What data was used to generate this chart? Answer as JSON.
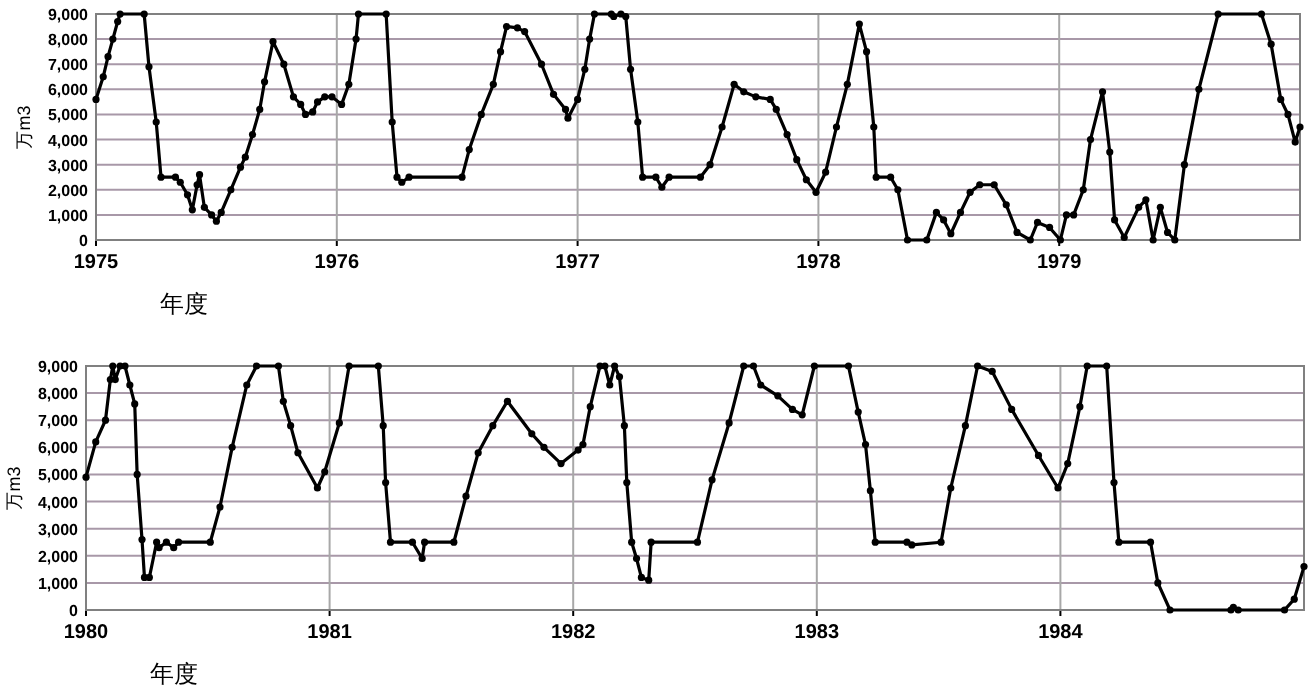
{
  "chart_data": [
    {
      "type": "line",
      "xlabel": "年度",
      "ylabel": "万m3",
      "grid": true,
      "marker": "circle",
      "line_style": "solid",
      "xlim": [
        1975,
        1980
      ],
      "ylim": [
        0,
        9000
      ],
      "xticks": [
        1975,
        1976,
        1977,
        1978,
        1979
      ],
      "yticks": [
        {
          "value": 0,
          "label": "0"
        },
        {
          "value": 1000,
          "label": "1,000"
        },
        {
          "value": 2000,
          "label": "2,000"
        },
        {
          "value": 3000,
          "label": "3,000"
        },
        {
          "value": 4000,
          "label": "4,000"
        },
        {
          "value": 5000,
          "label": "5,000"
        },
        {
          "value": 6000,
          "label": "6,000"
        },
        {
          "value": 7000,
          "label": "7,000"
        },
        {
          "value": 8000,
          "label": "8,000"
        },
        {
          "value": 9000,
          "label": "9,000"
        }
      ],
      "series": [
        {
          "color": "#000000",
          "x": [
            1975.0,
            1975.03,
            1975.05,
            1975.07,
            1975.09,
            1975.1,
            1975.2,
            1975.22,
            1975.25,
            1975.27,
            1975.33,
            1975.35,
            1975.38,
            1975.4,
            1975.42,
            1975.43,
            1975.45,
            1975.48,
            1975.5,
            1975.52,
            1975.56,
            1975.6,
            1975.62,
            1975.65,
            1975.68,
            1975.7,
            1975.735,
            1975.78,
            1975.82,
            1975.85,
            1975.87,
            1975.9,
            1975.92,
            1975.95,
            1975.98,
            1976.02,
            1976.05,
            1976.08,
            1976.09,
            1976.205,
            1976.23,
            1976.25,
            1976.27,
            1976.3,
            1976.52,
            1976.55,
            1976.6,
            1976.65,
            1976.68,
            1976.705,
            1976.75,
            1976.78,
            1976.85,
            1976.9,
            1976.95,
            1976.96,
            1977.0,
            1977.03,
            1977.05,
            1977.07,
            1977.14,
            1977.15,
            1977.18,
            1977.2,
            1977.22,
            1977.25,
            1977.27,
            1977.325,
            1977.35,
            1977.38,
            1977.51,
            1977.55,
            1977.6,
            1977.65,
            1977.69,
            1977.74,
            1977.8,
            1977.825,
            1977.87,
            1977.91,
            1977.95,
            1977.99,
            1978.03,
            1978.075,
            1978.12,
            1978.17,
            1978.2,
            1978.23,
            1978.24,
            1978.3,
            1978.33,
            1978.37,
            1978.45,
            1978.49,
            1978.52,
            1978.55,
            1978.59,
            1978.63,
            1978.67,
            1978.73,
            1978.78,
            1978.825,
            1978.88,
            1978.91,
            1978.96,
            1979.005,
            1979.03,
            1979.06,
            1979.1,
            1979.13,
            1979.18,
            1979.21,
            1979.23,
            1979.27,
            1979.33,
            1979.36,
            1979.39,
            1979.42,
            1979.45,
            1979.48,
            1979.52,
            1979.58,
            1979.66,
            1979.84,
            1979.88,
            1979.92,
            1979.95,
            1979.98,
            1980.0
          ],
          "values": [
            5600,
            6500,
            7300,
            8000,
            8700,
            9000,
            9000,
            6900,
            4700,
            2500,
            2500,
            2300,
            1800,
            1200,
            2200,
            2600,
            1300,
            1000,
            750,
            1100,
            2000,
            2900,
            3300,
            4200,
            5200,
            6300,
            7900,
            7000,
            5700,
            5400,
            5000,
            5100,
            5500,
            5700,
            5700,
            5400,
            6200,
            8000,
            9000,
            9000,
            4700,
            2500,
            2300,
            2500,
            2500,
            3600,
            5000,
            6200,
            7500,
            8500,
            8450,
            8300,
            7000,
            5800,
            5200,
            4850,
            5600,
            6800,
            8000,
            9000,
            9000,
            8900,
            9000,
            8900,
            6800,
            4700,
            2500,
            2500,
            2100,
            2500,
            2500,
            3000,
            4500,
            6200,
            5900,
            5700,
            5600,
            5200,
            4200,
            3200,
            2400,
            1900,
            2700,
            4500,
            6200,
            8600,
            7500,
            4500,
            2500,
            2500,
            2000,
            0,
            0,
            1100,
            800,
            250,
            1100,
            1900,
            2200,
            2200,
            1400,
            300,
            0,
            700,
            500,
            0,
            1000,
            1000,
            2000,
            4000,
            5900,
            3500,
            800,
            100,
            1300,
            1600,
            0,
            1300,
            300,
            0,
            3000,
            6000,
            9000,
            9000,
            7800,
            5600,
            5000,
            3900,
            4500
          ]
        }
      ]
    },
    {
      "type": "line",
      "xlabel": "年度",
      "ylabel": "万m3",
      "grid": true,
      "marker": "circle",
      "line_style": "solid",
      "xlim": [
        1980,
        1985
      ],
      "ylim": [
        0,
        9000
      ],
      "xticks": [
        1980,
        1981,
        1982,
        1983,
        1984
      ],
      "yticks": [
        {
          "value": 0,
          "label": "0"
        },
        {
          "value": 1000,
          "label": "1,000"
        },
        {
          "value": 2000,
          "label": "2,000"
        },
        {
          "value": 3000,
          "label": "3,000"
        },
        {
          "value": 4000,
          "label": "4,000"
        },
        {
          "value": 5000,
          "label": "5,000"
        },
        {
          "value": 6000,
          "label": "6,000"
        },
        {
          "value": 7000,
          "label": "7,000"
        },
        {
          "value": 8000,
          "label": "8,000"
        },
        {
          "value": 9000,
          "label": "9,000"
        }
      ],
      "series": [
        {
          "color": "#000000",
          "x": [
            1980.0,
            1980.04,
            1980.08,
            1980.1,
            1980.11,
            1980.12,
            1980.14,
            1980.16,
            1980.18,
            1980.2,
            1980.21,
            1980.23,
            1980.24,
            1980.26,
            1980.29,
            1980.3,
            1980.33,
            1980.36,
            1980.38,
            1980.51,
            1980.55,
            1980.6,
            1980.66,
            1980.7,
            1980.79,
            1980.81,
            1980.84,
            1980.87,
            1980.95,
            1980.98,
            1981.04,
            1981.08,
            1981.2,
            1981.22,
            1981.23,
            1981.25,
            1981.34,
            1981.38,
            1981.39,
            1981.51,
            1981.56,
            1981.61,
            1981.67,
            1981.73,
            1981.83,
            1981.88,
            1981.95,
            1982.02,
            1982.04,
            1982.07,
            1982.11,
            1982.13,
            1982.15,
            1982.17,
            1982.19,
            1982.21,
            1982.22,
            1982.24,
            1982.26,
            1982.28,
            1982.31,
            1982.32,
            1982.51,
            1982.57,
            1982.64,
            1982.7,
            1982.74,
            1982.77,
            1982.84,
            1982.9,
            1982.94,
            1982.99,
            1983.13,
            1983.17,
            1983.2,
            1983.22,
            1983.24,
            1983.37,
            1983.39,
            1983.51,
            1983.55,
            1983.61,
            1983.66,
            1983.72,
            1983.8,
            1983.91,
            1983.99,
            1984.03,
            1984.08,
            1984.11,
            1984.19,
            1984.22,
            1984.24,
            1984.37,
            1984.4,
            1984.45,
            1984.7,
            1984.71,
            1984.73,
            1984.92,
            1984.96,
            1985.0
          ],
          "values": [
            4900,
            6200,
            7000,
            8500,
            9000,
            8500,
            9000,
            9000,
            8300,
            7600,
            5000,
            2600,
            1200,
            1200,
            2500,
            2300,
            2500,
            2300,
            2500,
            2500,
            3800,
            6000,
            8300,
            9000,
            9000,
            7700,
            6800,
            5800,
            4500,
            5100,
            6900,
            9000,
            9000,
            6800,
            4700,
            2500,
            2500,
            1900,
            2500,
            2500,
            4200,
            5800,
            6800,
            7700,
            6500,
            6000,
            5400,
            5900,
            6100,
            7500,
            9000,
            9000,
            8300,
            9000,
            8600,
            6800,
            4700,
            2500,
            1900,
            1200,
            1100,
            2500,
            2500,
            4800,
            6900,
            9000,
            9000,
            8300,
            7900,
            7400,
            7200,
            9000,
            9000,
            7300,
            6100,
            4400,
            2500,
            2500,
            2400,
            2500,
            4500,
            6800,
            9000,
            8800,
            7400,
            5700,
            4500,
            5400,
            7500,
            9000,
            9000,
            4700,
            2500,
            2500,
            1000,
            0,
            0,
            100,
            0,
            0,
            400,
            1600
          ]
        }
      ]
    }
  ]
}
